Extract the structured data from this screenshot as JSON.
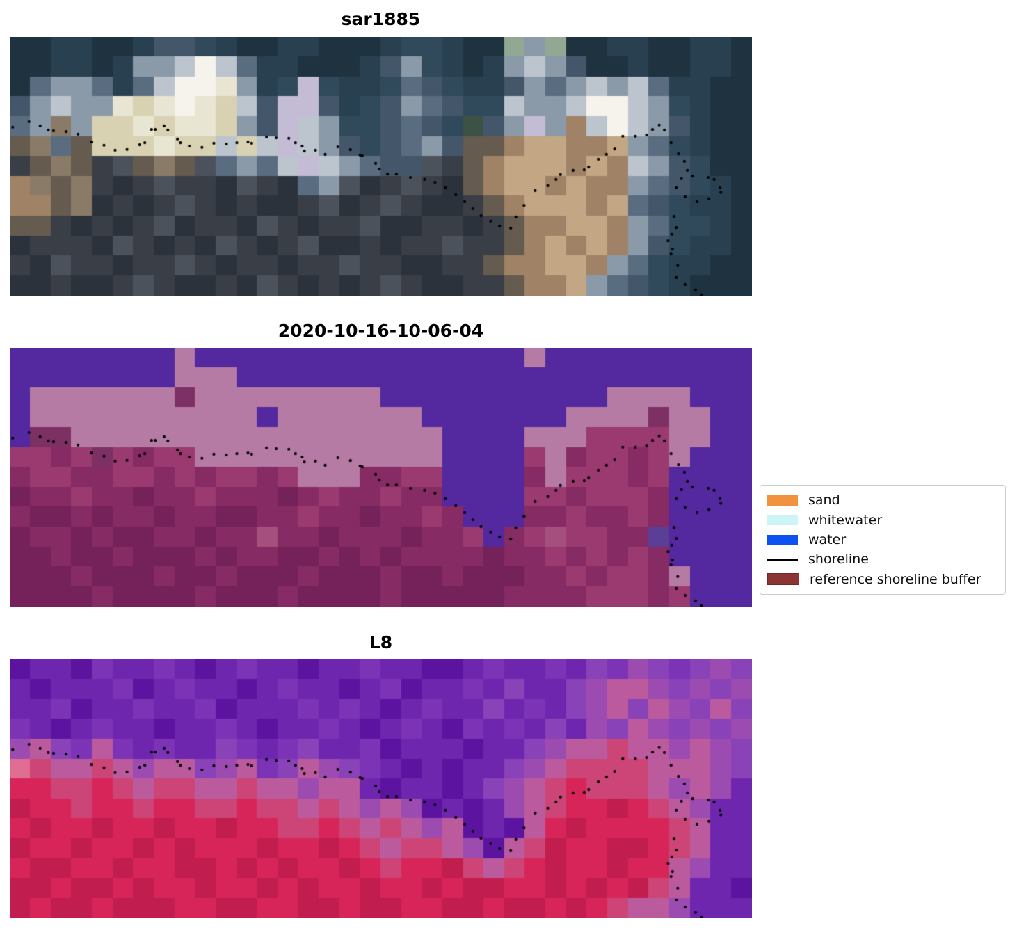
{
  "figure": {
    "background": "#ffffff",
    "panels": [
      {
        "title": "sar1885",
        "palette": {
          "b": "#1f3240",
          "c": "#28404f",
          "d": "#304a5c",
          "e": "#44576a",
          "f": "#5a6d80",
          "g": "#8b9aa9",
          "h": "#bcc4cd",
          "i": "#e9e5d3",
          "j": "#f5f3ec",
          "k": "#d8d2b2",
          "l": "#c4bcd4",
          "m": "#8a7a68",
          "n": "#665b4f",
          "o": "#a08266",
          "p": "#c3a684",
          "q": "#3a3e46",
          "r": "#4c525c",
          "s": "#2b323b",
          "u": "#3c5244",
          "v": "#93a893"
        },
        "rows": [
          "bbccbbceedcbbccbbbcddcbbvgvbbccbbccb",
          "bbccbcgghjhfccbbbcegdcbcghgebbcbbccb",
          "bfggfcfhjjigcdldccdfedccegfghghfccbb",
          "eghggikijikhellecdegfeddhgghjjhgdcbb",
          "fgmgkkikiikgelhgddefedueglgohjhgecbb",
          "nmfnkkkikkhkhlhgedefgennoppoopgfdcbb",
          "qnmnqrnmnrfgfhlhgfeerqnopppopohgedbb",
          "omnmqsqrqqsrqsfgrsqrqsnoppopoogfedcb",
          "oonmsqsqrqsqssqrsqrqssqnopppopfedccb",
          "nnqsqsqrsqqsrqsqqrssqqsqnooppogfddcb",
          "sqqqsrqsqsrqsqrssqsqqrqqnopopogedccb",
          "qsrqqsqqrqsqqsqqrqqssqqnooppogfdccbb",
          "ssqssqrqssqsrqsqsqrqssqqnoopgfedcbbb"
        ]
      },
      {
        "title": "2020-10-16-10-06-04",
        "palette": {
          "A": "#54289e",
          "B": "#b57ba4",
          "C": "#9a3a70",
          "D": "#862b64",
          "E": "#75215a",
          "F": "#a44f7e",
          "G": "#7c3063",
          "H": "#5b3f96"
        },
        "rows": [
          "AAAAAAAABAAAAAAAAAAAAAAAABAAAAAAAAAA",
          "AAAAAAAABBBAAAAAAAAAAAAAAAAAAAAAAAAA",
          "ABBBBBBBGBBBBBBBBBAAAAAAAAAAABBBBAAA",
          "ABBBBBBBBBBBABBBBBBBAAAAAAABBBBGBBAA",
          "AGGBBBBBBBBBBBBBBBBBBAAAABBBCCCCBBAA",
          "CCDCGCDCCBBBBBBBBBBBBAAAACBDCCDCBAAA",
          "DCCDDCCDCDCCDCBBBDDCCAAAADBCCCDCAAAA",
          "EDDCDDEDDCDDDEDCDDCDDAAAACCDCCCDAAAA",
          "DEEDEDDEDDEEDDCDDEDDCDAAADDCDDCDAAAA",
          "EDDEDEEDDEDDFDDEDDDEDDCADCFCCDDHAAAA",
          "EEDEEDEEEDEDDEEDEDEDDDDEDDCDCDCDAAAA",
          "EEEDEEEDEEDEEEDEEEDEEDEEEDDCDCCDBAAA",
          "EEEEDEEEEDEEEDEEEEDEEEEEDDDDCCCDCAAA"
        ]
      },
      {
        "title": "L8",
        "palette": {
          "P": "#6f26af",
          "Q": "#5c14a0",
          "R": "#7c33b6",
          "S": "#8a42b8",
          "T": "#9c4bb0",
          "U": "#bb5b9e",
          "V": "#cc4576",
          "W": "#d72559",
          "X": "#c11d4e",
          "Y": "#e06e92"
        },
        "rows": [
          "QPPQRPPRPQPRPPQPPRPPQQPRPPRPSRTSRSTS",
          "PQPPPRQPRPPQPRPPQPRQPPRPSPPSTUUTSTST",
          "PPRQPPRPPRQPPPRPRPQPRPPSPRPSTUSUTSUS",
          "RPQPRPPQPPRPQPPRPQPRPQRPRPSPTSUTSTST",
          "TUSRURPRPPSRPRSPPRQPPPQPPSTUUVUUTUTS",
          "YVUUVUTUUSTURSUTSRPQPQPPSTUVVVVUUUTS",
          "WWVVWVUVVUUVUUTUUPQPPQPSTUVWVVVUTUTP",
          "XWWVWWVWWVVWVVUVUTUTQPQPTUVWWXWVUTPP",
          "WXWWXWWXWWXWWVVWVUVUTUQPQUWXWWWWVUPP",
          "XWWXWWXWXWWWXWWXWVUVVUTQUVXWWXXWVUPP",
          "WXXWWXWWXXWXWXWWXWVWWXVUVWXWWXWWUTPP",
          "XXWXXWXWWXWWXWXWWXWWXWXXWWXWXWXVUPPQ",
          "XWXXWXXXWWXXWWXXWXXWWXXWXXWXWVUUTPPP"
        ]
      }
    ],
    "shoreline": {
      "color": "#000000",
      "dot_radius": 2.1,
      "dots": [
        [
          0.004,
          0.349
        ],
        [
          0.026,
          0.328
        ],
        [
          0.041,
          0.344
        ],
        [
          0.052,
          0.36
        ],
        [
          0.059,
          0.363
        ],
        [
          0.076,
          0.366
        ],
        [
          0.092,
          0.376
        ],
        [
          0.11,
          0.406
        ],
        [
          0.127,
          0.419
        ],
        [
          0.142,
          0.438
        ],
        [
          0.158,
          0.435
        ],
        [
          0.175,
          0.417
        ],
        [
          0.182,
          0.409
        ],
        [
          0.191,
          0.358
        ],
        [
          0.196,
          0.358
        ],
        [
          0.208,
          0.344
        ],
        [
          0.213,
          0.36
        ],
        [
          0.226,
          0.395
        ],
        [
          0.23,
          0.409
        ],
        [
          0.242,
          0.422
        ],
        [
          0.259,
          0.427
        ],
        [
          0.275,
          0.411
        ],
        [
          0.292,
          0.414
        ],
        [
          0.306,
          0.409
        ],
        [
          0.321,
          0.406
        ],
        [
          0.326,
          0.411
        ],
        [
          0.346,
          0.387
        ],
        [
          0.359,
          0.39
        ],
        [
          0.376,
          0.392
        ],
        [
          0.385,
          0.409
        ],
        [
          0.394,
          0.422
        ],
        [
          0.397,
          0.441
        ],
        [
          0.412,
          0.438
        ],
        [
          0.425,
          0.454
        ],
        [
          0.442,
          0.425
        ],
        [
          0.459,
          0.436
        ],
        [
          0.472,
          0.457
        ],
        [
          0.475,
          0.46
        ],
        [
          0.493,
          0.489
        ],
        [
          0.498,
          0.511
        ],
        [
          0.509,
          0.53
        ],
        [
          0.521,
          0.53
        ],
        [
          0.54,
          0.543
        ],
        [
          0.559,
          0.551
        ],
        [
          0.573,
          0.562
        ],
        [
          0.587,
          0.583
        ],
        [
          0.601,
          0.61
        ],
        [
          0.613,
          0.637
        ],
        [
          0.624,
          0.664
        ],
        [
          0.635,
          0.691
        ],
        [
          0.648,
          0.712
        ],
        [
          0.66,
          0.731
        ],
        [
          0.675,
          0.739
        ],
        [
          0.682,
          0.696
        ],
        [
          0.693,
          0.651
        ],
        [
          0.708,
          0.594
        ],
        [
          0.725,
          0.575
        ],
        [
          0.736,
          0.551
        ],
        [
          0.742,
          0.532
        ],
        [
          0.759,
          0.516
        ],
        [
          0.774,
          0.514
        ],
        [
          0.78,
          0.503
        ],
        [
          0.793,
          0.473
        ],
        [
          0.804,
          0.454
        ],
        [
          0.815,
          0.433
        ],
        [
          0.826,
          0.384
        ],
        [
          0.843,
          0.384
        ],
        [
          0.858,
          0.379
        ],
        [
          0.866,
          0.358
        ],
        [
          0.875,
          0.341
        ],
        [
          0.882,
          0.36
        ],
        [
          0.891,
          0.409
        ],
        [
          0.901,
          0.452
        ],
        [
          0.909,
          0.481
        ],
        [
          0.913,
          0.516
        ],
        [
          0.92,
          0.538
        ],
        [
          0.941,
          0.543
        ],
        [
          0.949,
          0.551
        ],
        [
          0.957,
          0.583
        ],
        [
          0.958,
          0.601
        ],
        [
          0.942,
          0.626
        ],
        [
          0.926,
          0.637
        ],
        [
          0.91,
          0.618
        ],
        [
          0.905,
          0.548
        ],
        [
          0.898,
          0.583
        ],
        [
          0.895,
          0.694
        ],
        [
          0.898,
          0.737
        ],
        [
          0.892,
          0.763
        ],
        [
          0.887,
          0.788
        ],
        [
          0.893,
          0.82
        ],
        [
          0.891,
          0.839
        ],
        [
          0.9,
          0.884
        ],
        [
          0.898,
          0.93
        ],
        [
          0.91,
          0.957
        ],
        [
          0.924,
          0.978
        ],
        [
          0.932,
          0.997
        ]
      ]
    }
  },
  "legend": {
    "items": [
      {
        "label": "sand",
        "type": "patch",
        "swatch": "#f0923e"
      },
      {
        "label": "whitewater",
        "type": "patch",
        "swatch": "#cdf5f6"
      },
      {
        "label": "water",
        "type": "patch",
        "swatch": "#0c52f0"
      },
      {
        "label": "shoreline",
        "type": "line",
        "swatch": "#000000"
      },
      {
        "label": "reference shoreline buffer",
        "type": "patch",
        "swatch": "#8b3433",
        "border": "#702828"
      }
    ]
  },
  "chart_data": {
    "type": "heatmap",
    "title": "shoreline detection figure",
    "subplots": [
      {
        "title": "sar1885",
        "description": "satellite RGB image with detected shoreline dots"
      },
      {
        "title": "2020-10-16-10-06-04",
        "description": "classified image (water/whitewater overlaid with reference shoreline buffer) with detected shoreline dots"
      },
      {
        "title": "L8",
        "description": "Landsat-8 false-color image with detected shoreline dots"
      }
    ],
    "legend_entries": [
      "sand",
      "whitewater",
      "water",
      "shoreline",
      "reference shoreline buffer"
    ],
    "legend_position": "center right",
    "grid": false
  }
}
